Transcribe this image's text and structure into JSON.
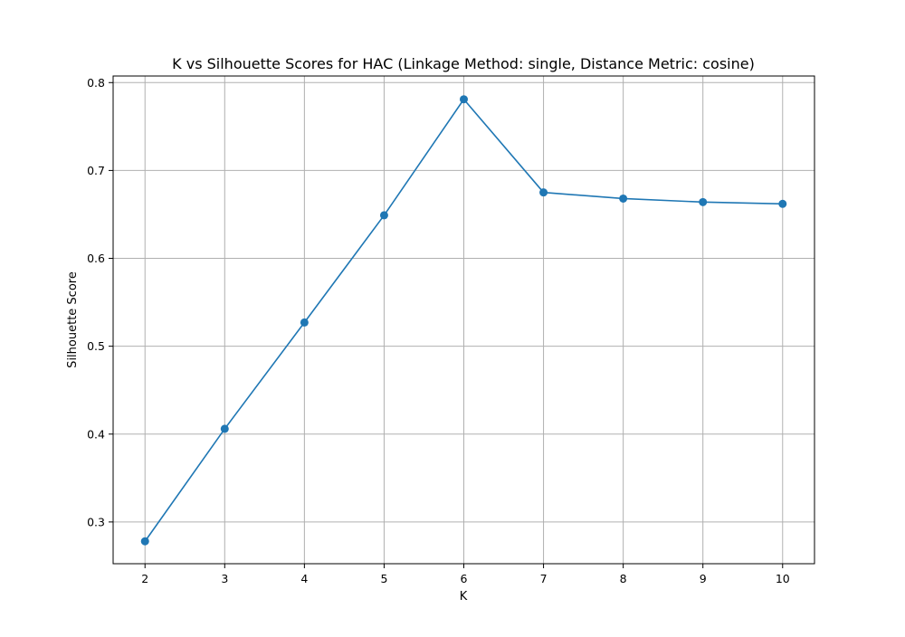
{
  "chart_data": {
    "type": "line",
    "title": "K vs Silhouette Scores for HAC (Linkage Method: single, Distance Metric: cosine)",
    "xlabel": "K",
    "ylabel": "Silhouette Score",
    "x": [
      2,
      3,
      4,
      5,
      6,
      7,
      8,
      9,
      10
    ],
    "series": [
      {
        "values": [
          0.278,
          0.406,
          0.527,
          0.649,
          0.781,
          0.675,
          0.668,
          0.664,
          0.662
        ]
      }
    ],
    "xlim": [
      1.6,
      10.4
    ],
    "ylim": [
      0.2525,
      0.8075
    ],
    "xticks": [
      2,
      3,
      4,
      5,
      6,
      7,
      8,
      9,
      10
    ],
    "yticks": [
      0.3,
      0.4,
      0.5,
      0.6,
      0.7,
      0.8
    ],
    "ytick_labels": [
      "0.3",
      "0.4",
      "0.5",
      "0.6",
      "0.7",
      "0.8"
    ],
    "grid": true,
    "marker": "circle",
    "line_color": "#1f77b4",
    "grid_color": "#b0b0b0"
  }
}
